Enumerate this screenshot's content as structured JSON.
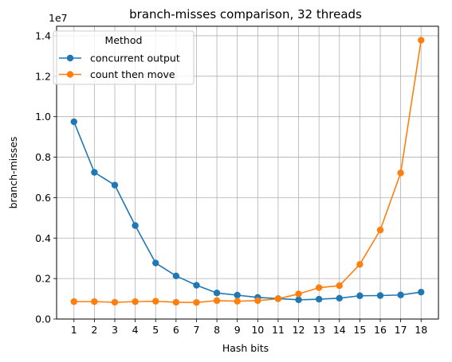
{
  "chart_data": {
    "type": "line",
    "title": "branch-misses comparison, 32 threads",
    "xlabel": "Hash bits",
    "ylabel": "branch-misses",
    "y_offset_label": "1e7",
    "x": [
      1,
      2,
      3,
      4,
      5,
      6,
      7,
      8,
      9,
      10,
      11,
      12,
      13,
      14,
      15,
      16,
      17,
      18
    ],
    "x_ticks": [
      "1",
      "2",
      "3",
      "4",
      "5",
      "6",
      "7",
      "8",
      "9",
      "10",
      "11",
      "12",
      "13",
      "14",
      "15",
      "16",
      "17",
      "18"
    ],
    "y_ticks": [
      "0.0",
      "0.2",
      "0.4",
      "0.6",
      "0.8",
      "1.0",
      "1.2",
      "1.4"
    ],
    "y_tick_values": [
      0,
      2000000,
      4000000,
      6000000,
      8000000,
      10000000,
      12000000,
      14000000
    ],
    "xlim": [
      0.15,
      18.85
    ],
    "ylim": [
      0,
      14470000
    ],
    "grid": true,
    "legend": {
      "title": "Method",
      "position": "top-left"
    },
    "series": [
      {
        "name": "concurrent output",
        "color": "#1f77b4",
        "values": [
          9750000,
          7250000,
          6620000,
          4620000,
          2770000,
          2130000,
          1670000,
          1290000,
          1180000,
          1070000,
          1010000,
          950000,
          980000,
          1030000,
          1150000,
          1160000,
          1190000,
          1330000
        ]
      },
      {
        "name": "count then move",
        "color": "#ff7f0e",
        "values": [
          860000,
          860000,
          830000,
          860000,
          880000,
          830000,
          820000,
          910000,
          880000,
          910000,
          1000000,
          1240000,
          1550000,
          1650000,
          2700000,
          4400000,
          7220000,
          13780000
        ]
      }
    ]
  }
}
